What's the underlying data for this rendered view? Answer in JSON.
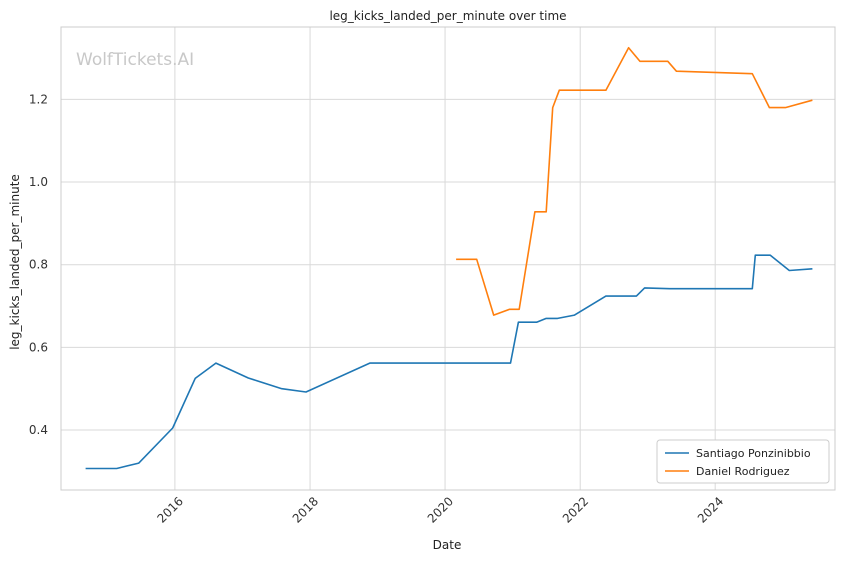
{
  "chart_data": {
    "type": "line",
    "title": "leg_kicks_landed_per_minute over time",
    "xlabel": "Date",
    "ylabel": "leg_kicks_landed_per_minute",
    "watermark": "WolfTickets.AI",
    "x_axis": {
      "type": "date",
      "range": [
        "2014-04-25",
        "2025-10-10"
      ],
      "ticks": [
        "2016",
        "2018",
        "2020",
        "2022",
        "2024"
      ],
      "tick_dates": [
        "2016-01-01",
        "2018-01-01",
        "2020-01-01",
        "2022-01-01",
        "2024-01-01"
      ]
    },
    "y_axis": {
      "range": [
        0.255,
        1.375
      ],
      "ticks": [
        "0.4",
        "0.6",
        "0.8",
        "1.0",
        "1.2"
      ],
      "tick_values": [
        0.4,
        0.6,
        0.8,
        1.0,
        1.2
      ]
    },
    "grid": true,
    "legend_position": "bottom-right",
    "series": [
      {
        "name": "Santiago Ponzinibbio",
        "color": "#1f77b4",
        "points": [
          [
            "2014-09-05",
            0.307
          ],
          [
            "2015-02-20",
            0.307
          ],
          [
            "2015-06-20",
            0.32
          ],
          [
            "2015-12-20",
            0.405
          ],
          [
            "2016-04-20",
            0.525
          ],
          [
            "2016-08-10",
            0.562
          ],
          [
            "2017-02-01",
            0.526
          ],
          [
            "2017-08-01",
            0.5
          ],
          [
            "2017-12-10",
            0.492
          ],
          [
            "2018-11-20",
            0.562
          ],
          [
            "2020-12-20",
            0.562
          ],
          [
            "2021-02-01",
            0.661
          ],
          [
            "2021-05-10",
            0.661
          ],
          [
            "2021-07-01",
            0.67
          ],
          [
            "2021-09-01",
            0.67
          ],
          [
            "2021-12-01",
            0.678
          ],
          [
            "2022-05-20",
            0.724
          ],
          [
            "2022-11-01",
            0.724
          ],
          [
            "2022-12-15",
            0.744
          ],
          [
            "2023-05-01",
            0.742
          ],
          [
            "2024-07-20",
            0.742
          ],
          [
            "2024-08-05",
            0.823
          ],
          [
            "2024-10-25",
            0.823
          ],
          [
            "2025-02-05",
            0.786
          ],
          [
            "2025-06-10",
            0.79
          ]
        ]
      },
      {
        "name": "Daniel Rodriguez",
        "color": "#ff7f0e",
        "points": [
          [
            "2020-03-01",
            0.813
          ],
          [
            "2020-06-20",
            0.813
          ],
          [
            "2020-09-20",
            0.678
          ],
          [
            "2020-12-15",
            0.692
          ],
          [
            "2021-02-05",
            0.692
          ],
          [
            "2021-05-01",
            0.928
          ],
          [
            "2021-07-01",
            0.928
          ],
          [
            "2021-08-05",
            1.18
          ],
          [
            "2021-09-10",
            1.222
          ],
          [
            "2022-05-20",
            1.222
          ],
          [
            "2022-09-20",
            1.325
          ],
          [
            "2022-11-20",
            1.292
          ],
          [
            "2023-04-20",
            1.292
          ],
          [
            "2023-06-05",
            1.268
          ],
          [
            "2024-07-20",
            1.262
          ],
          [
            "2024-10-20",
            1.18
          ],
          [
            "2025-01-15",
            1.18
          ],
          [
            "2025-06-10",
            1.198
          ]
        ]
      }
    ]
  }
}
